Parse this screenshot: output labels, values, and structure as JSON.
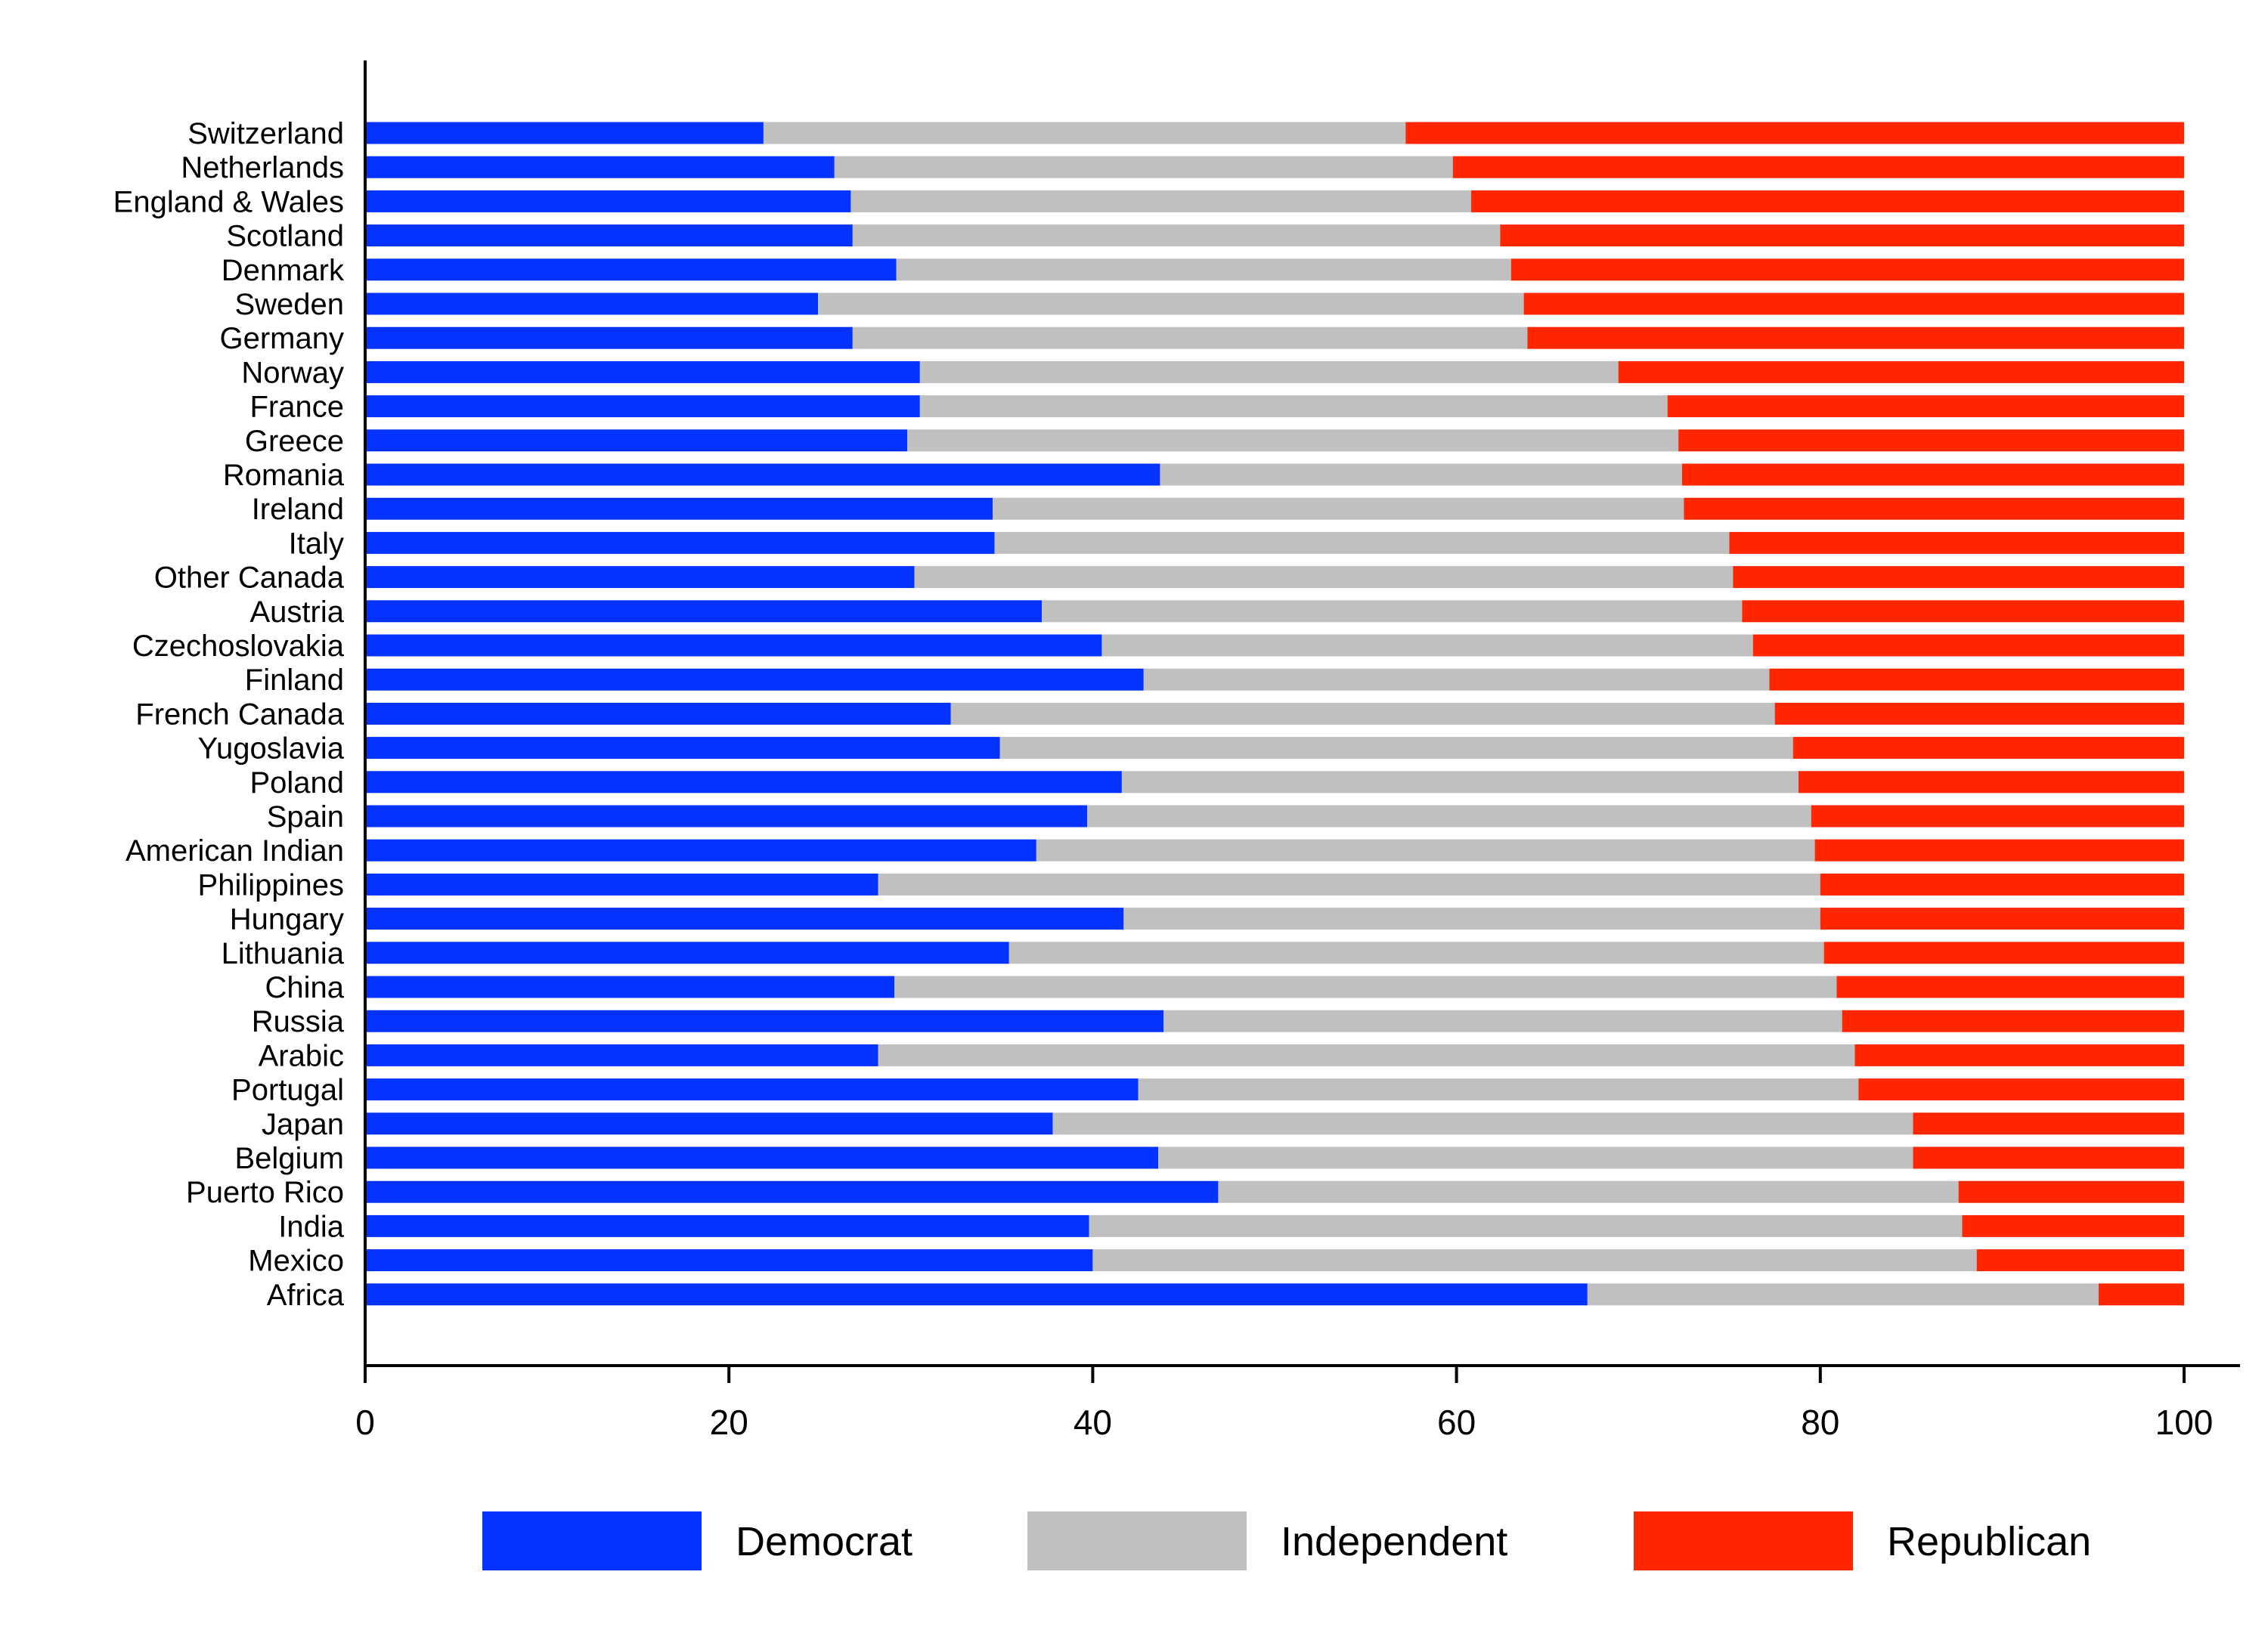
{
  "chart_data": {
    "type": "bar",
    "orientation": "horizontal",
    "stacked": true,
    "title": "",
    "xlabel": "",
    "ylabel": "",
    "xlim": [
      0,
      100
    ],
    "xticks": [
      0,
      20,
      40,
      60,
      80,
      100
    ],
    "grid": false,
    "legend_position": "bottom",
    "categories": [
      "Switzerland",
      "Netherlands",
      "England & Wales",
      "Scotland",
      "Denmark",
      "Sweden",
      "Germany",
      "Norway",
      "France",
      "Greece",
      "Romania",
      "Ireland",
      "Italy",
      "Other Canada",
      "Austria",
      "Czechoslovakia",
      "Finland",
      "French Canada",
      "Yugoslavia",
      "Poland",
      "Spain",
      "American Indian",
      "Philippines",
      "Hungary",
      "Lithuania",
      "China",
      "Russia",
      "Arabic",
      "Portugal",
      "Japan",
      "Belgium",
      "Puerto Rico",
      "India",
      "Mexico",
      "Africa"
    ],
    "series": [
      {
        "name": "Democrat",
        "color": "#0433FF",
        "values": [
          21.9,
          25.8,
          26.7,
          26.8,
          29.2,
          24.9,
          26.8,
          30.5,
          30.5,
          29.8,
          43.7,
          34.5,
          34.6,
          30.2,
          37.2,
          40.5,
          42.8,
          32.2,
          34.9,
          41.6,
          39.7,
          36.9,
          28.2,
          41.7,
          35.4,
          29.1,
          43.9,
          28.2,
          42.5,
          37.8,
          43.6,
          46.9,
          39.8,
          40.0,
          67.2
        ]
      },
      {
        "name": "Independent",
        "color": "#C0C0C0",
        "values": [
          35.3,
          34.0,
          34.1,
          35.6,
          33.8,
          38.8,
          37.1,
          38.4,
          41.1,
          42.4,
          28.7,
          38.0,
          40.4,
          45.0,
          38.5,
          35.8,
          34.4,
          45.3,
          43.6,
          37.2,
          39.8,
          42.8,
          51.8,
          38.3,
          44.8,
          51.8,
          37.3,
          53.7,
          39.6,
          47.3,
          41.5,
          40.7,
          48.0,
          48.6,
          28.1
        ]
      },
      {
        "name": "Republican",
        "color": "#FF2600",
        "values": [
          42.8,
          40.2,
          39.2,
          37.6,
          37.0,
          36.3,
          36.1,
          31.1,
          28.4,
          27.8,
          27.6,
          27.5,
          25.0,
          24.8,
          24.3,
          23.7,
          22.8,
          22.5,
          21.5,
          21.2,
          20.5,
          20.3,
          20.0,
          20.0,
          19.8,
          19.1,
          18.8,
          18.1,
          17.9,
          14.9,
          14.9,
          12.4,
          12.2,
          11.4,
          4.7
        ]
      }
    ]
  }
}
